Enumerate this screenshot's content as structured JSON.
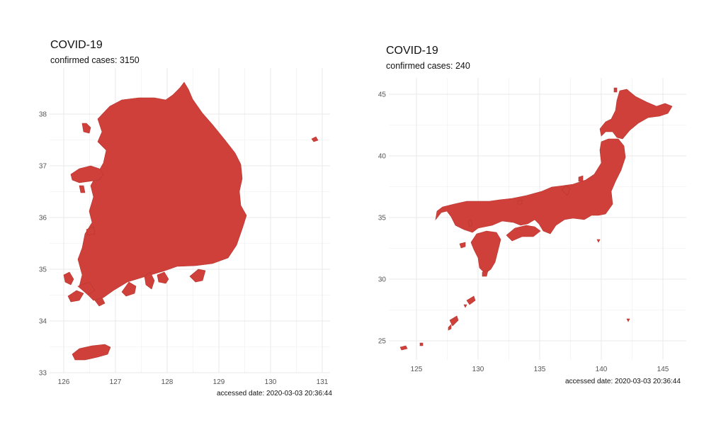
{
  "panels": [
    {
      "title": "COVID-19",
      "subtitle": "confirmed cases: 3150",
      "caption": "accessed date: 2020-03-03 20:36:44"
    },
    {
      "title": "COVID-19",
      "subtitle": "confirmed cases: 240",
      "caption": "accessed date: 2020-03-03 20:36:44"
    }
  ],
  "chart_data": [
    {
      "type": "map",
      "region": "South Korea",
      "fill_color": "#cf403a",
      "grid": true,
      "x_ticks": [
        126,
        127,
        128,
        129,
        130,
        131
      ],
      "y_ticks": [
        33,
        34,
        35,
        36,
        37,
        38
      ],
      "xlim": [
        125.95,
        131.2
      ],
      "ylim": [
        32.95,
        38.85
      ]
    },
    {
      "type": "map",
      "region": "Japan",
      "fill_color": "#cf403a",
      "grid": true,
      "x_ticks": [
        125,
        130,
        135,
        140,
        145
      ],
      "y_ticks": [
        25,
        30,
        35,
        40,
        45
      ],
      "xlim": [
        123,
        147
      ],
      "ylim": [
        23.5,
        46.5
      ]
    }
  ]
}
